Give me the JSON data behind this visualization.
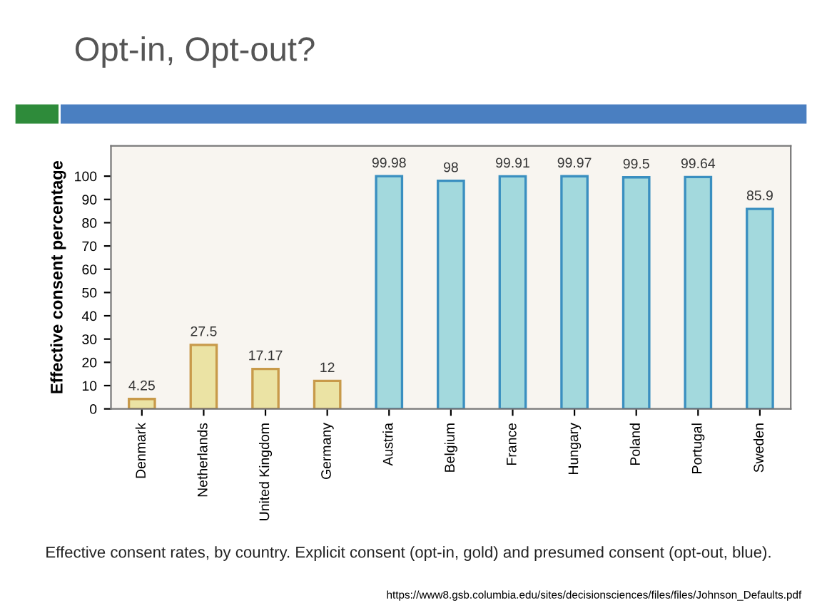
{
  "chart_data": {
    "type": "bar",
    "title": "Opt-in, Opt-out?",
    "ylabel": "Effective consent percentage",
    "categories": [
      "Denmark",
      "Netherlands",
      "United Kingdom",
      "Germany",
      "Austria",
      "Belgium",
      "France",
      "Hungary",
      "Poland",
      "Portugal",
      "Sweden"
    ],
    "values": [
      4.25,
      27.5,
      17.17,
      12,
      99.98,
      98,
      99.91,
      99.97,
      99.5,
      99.64,
      85.9
    ],
    "colors": [
      "#ebe3a4",
      "#ebe3a4",
      "#ebe3a4",
      "#ebe3a4",
      "#a3d9dd",
      "#a3d9dd",
      "#a3d9dd",
      "#a3d9dd",
      "#a3d9dd",
      "#a3d9dd",
      "#a3d9dd"
    ],
    "data_labels": true,
    "ylim": [
      0,
      113
    ],
    "yticks": [
      0,
      10,
      20,
      30,
      40,
      50,
      60,
      70,
      80,
      90,
      100
    ],
    "grid": false,
    "legend": false,
    "annotations": [
      "Effective consent rates, by country. Explicit consent (opt-in, gold) and presumed consent (opt-out, blue).",
      "https://www8.gsb.columbia.edu/sites/decisionsciences/files/files/Johnson_Defaults.pdf"
    ]
  }
}
